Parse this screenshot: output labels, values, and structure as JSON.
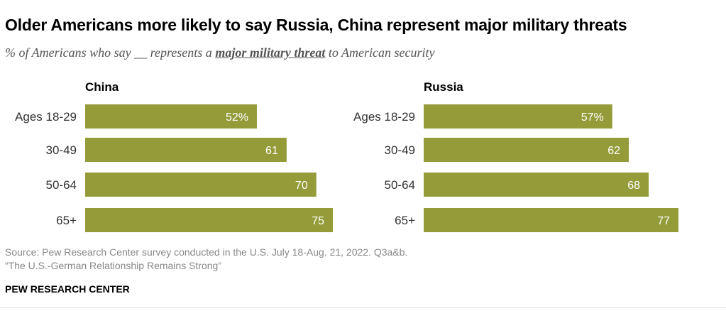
{
  "title": "Older Americans more likely to say Russia, China represent major military threats",
  "subtitle": {
    "prefix": "% of Americans who say __ represents a ",
    "emphasis": "major military threat",
    "suffix": " to American security"
  },
  "colors": {
    "bar": "#949c3a"
  },
  "chart_data": [
    {
      "type": "bar",
      "orientation": "horizontal",
      "title": "China",
      "categories": [
        "Ages 18-29",
        "30-49",
        "50-64",
        "65+"
      ],
      "values": [
        52,
        61,
        70,
        75
      ],
      "labels": [
        "52%",
        "61",
        "70",
        "75"
      ],
      "xlim": [
        0,
        75
      ]
    },
    {
      "type": "bar",
      "orientation": "horizontal",
      "title": "Russia",
      "categories": [
        "Ages 18-29",
        "30-49",
        "50-64",
        "65+"
      ],
      "values": [
        57,
        62,
        68,
        77
      ],
      "labels": [
        "57%",
        "62",
        "68",
        "77"
      ],
      "xlim": [
        0,
        77
      ]
    }
  ],
  "source": {
    "line1": "Source: Pew Research Center survey conducted in the U.S. July 18-Aug. 21, 2022. Q3a&b.",
    "line2": "“The U.S.-German Relationship Remains Strong”"
  },
  "footer": "PEW RESEARCH CENTER"
}
